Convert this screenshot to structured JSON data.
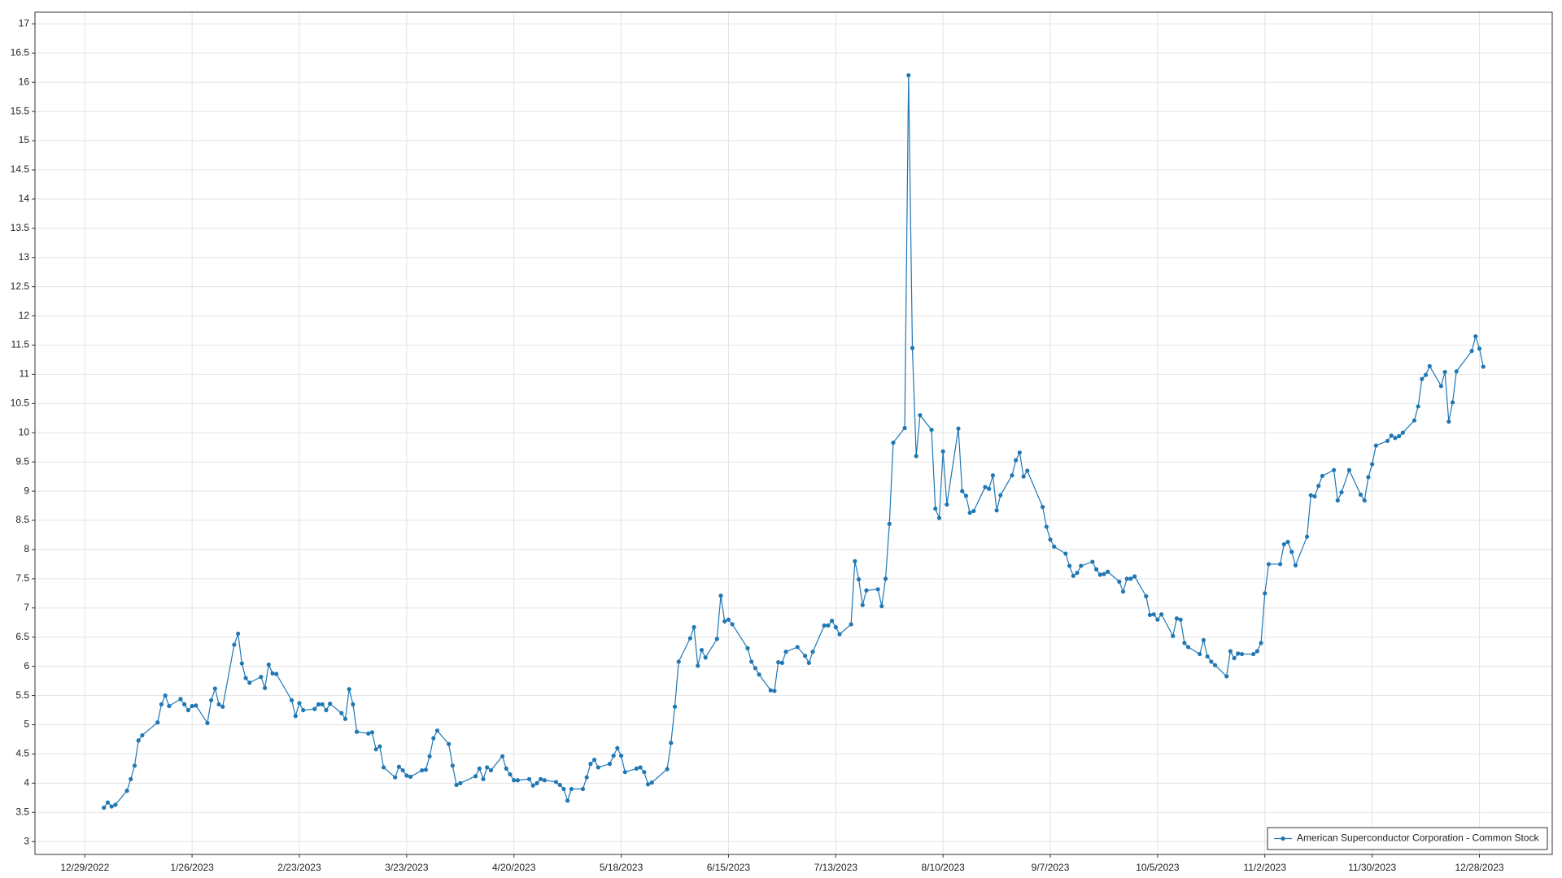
{
  "chart_data": {
    "type": "line",
    "x": [
      "1/3/2023",
      "1/4/2023",
      "1/5/2023",
      "1/6/2023",
      "1/9/2023",
      "1/10/2023",
      "1/11/2023",
      "1/12/2023",
      "1/13/2023",
      "1/17/2023",
      "1/18/2023",
      "1/19/2023",
      "1/20/2023",
      "1/23/2023",
      "1/24/2023",
      "1/25/2023",
      "1/26/2023",
      "1/27/2023",
      "1/30/2023",
      "1/31/2023",
      "2/1/2023",
      "2/2/2023",
      "2/3/2023",
      "2/6/2023",
      "2/7/2023",
      "2/8/2023",
      "2/9/2023",
      "2/10/2023",
      "2/13/2023",
      "2/14/2023",
      "2/15/2023",
      "2/16/2023",
      "2/17/2023",
      "2/21/2023",
      "2/22/2023",
      "2/23/2023",
      "2/24/2023",
      "2/27/2023",
      "2/28/2023",
      "3/1/2023",
      "3/2/2023",
      "3/3/2023",
      "3/6/2023",
      "3/7/2023",
      "3/8/2023",
      "3/9/2023",
      "3/10/2023",
      "3/13/2023",
      "3/14/2023",
      "3/15/2023",
      "3/16/2023",
      "3/17/2023",
      "3/20/2023",
      "3/21/2023",
      "3/22/2023",
      "3/23/2023",
      "3/24/2023",
      "3/27/2023",
      "3/28/2023",
      "3/29/2023",
      "3/30/2023",
      "3/31/2023",
      "4/3/2023",
      "4/4/2023",
      "4/5/2023",
      "4/6/2023",
      "4/10/2023",
      "4/11/2023",
      "4/12/2023",
      "4/13/2023",
      "4/14/2023",
      "4/17/2023",
      "4/18/2023",
      "4/19/2023",
      "4/20/2023",
      "4/21/2023",
      "4/24/2023",
      "4/25/2023",
      "4/26/2023",
      "4/27/2023",
      "4/28/2023",
      "5/1/2023",
      "5/2/2023",
      "5/3/2023",
      "5/4/2023",
      "5/5/2023",
      "5/8/2023",
      "5/9/2023",
      "5/10/2023",
      "5/11/2023",
      "5/12/2023",
      "5/15/2023",
      "5/16/2023",
      "5/17/2023",
      "5/18/2023",
      "5/19/2023",
      "5/22/2023",
      "5/23/2023",
      "5/24/2023",
      "5/25/2023",
      "5/26/2023",
      "5/30/2023",
      "5/31/2023",
      "6/1/2023",
      "6/2/2023",
      "6/5/2023",
      "6/6/2023",
      "6/7/2023",
      "6/8/2023",
      "6/9/2023",
      "6/12/2023",
      "6/13/2023",
      "6/14/2023",
      "6/15/2023",
      "6/16/2023",
      "6/20/2023",
      "6/21/2023",
      "6/22/2023",
      "6/23/2023",
      "6/26/2023",
      "6/27/2023",
      "6/28/2023",
      "6/29/2023",
      "6/30/2023",
      "7/3/2023",
      "7/5/2023",
      "7/6/2023",
      "7/7/2023",
      "7/10/2023",
      "7/11/2023",
      "7/12/2023",
      "7/13/2023",
      "7/14/2023",
      "7/17/2023",
      "7/18/2023",
      "7/19/2023",
      "7/20/2023",
      "7/21/2023",
      "7/24/2023",
      "7/25/2023",
      "7/26/2023",
      "7/27/2023",
      "7/28/2023",
      "7/31/2023",
      "8/1/2023",
      "8/2/2023",
      "8/3/2023",
      "8/4/2023",
      "8/7/2023",
      "8/8/2023",
      "8/9/2023",
      "8/10/2023",
      "8/11/2023",
      "8/14/2023",
      "8/15/2023",
      "8/16/2023",
      "8/17/2023",
      "8/18/2023",
      "8/21/2023",
      "8/22/2023",
      "8/23/2023",
      "8/24/2023",
      "8/25/2023",
      "8/28/2023",
      "8/29/2023",
      "8/30/2023",
      "8/31/2023",
      "9/1/2023",
      "9/5/2023",
      "9/6/2023",
      "9/7/2023",
      "9/8/2023",
      "9/11/2023",
      "9/12/2023",
      "9/13/2023",
      "9/14/2023",
      "9/15/2023",
      "9/18/2023",
      "9/19/2023",
      "9/20/2023",
      "9/21/2023",
      "9/22/2023",
      "9/25/2023",
      "9/26/2023",
      "9/27/2023",
      "9/28/2023",
      "9/29/2023",
      "10/2/2023",
      "10/3/2023",
      "10/4/2023",
      "10/5/2023",
      "10/6/2023",
      "10/9/2023",
      "10/10/2023",
      "10/11/2023",
      "10/12/2023",
      "10/13/2023",
      "10/16/2023",
      "10/17/2023",
      "10/18/2023",
      "10/19/2023",
      "10/20/2023",
      "10/23/2023",
      "10/24/2023",
      "10/25/2023",
      "10/26/2023",
      "10/27/2023",
      "10/30/2023",
      "10/31/2023",
      "11/1/2023",
      "11/2/2023",
      "11/3/2023",
      "11/6/2023",
      "11/7/2023",
      "11/8/2023",
      "11/9/2023",
      "11/10/2023",
      "11/13/2023",
      "11/14/2023",
      "11/15/2023",
      "11/16/2023",
      "11/17/2023",
      "11/20/2023",
      "11/21/2023",
      "11/22/2023",
      "11/24/2023",
      "11/27/2023",
      "11/28/2023",
      "11/29/2023",
      "11/30/2023",
      "12/1/2023",
      "12/4/2023",
      "12/5/2023",
      "12/6/2023",
      "12/7/2023",
      "12/8/2023",
      "12/11/2023",
      "12/12/2023",
      "12/13/2023",
      "12/14/2023",
      "12/15/2023",
      "12/18/2023",
      "12/19/2023",
      "12/20/2023",
      "12/21/2023",
      "12/22/2023",
      "12/26/2023",
      "12/27/2023",
      "12/28/2023",
      "12/29/2023"
    ],
    "series": [
      {
        "name": "American Superconductor Corporation - Common Stock",
        "color": "#1f77b4",
        "values": [
          3.58,
          3.67,
          3.6,
          3.63,
          3.87,
          4.07,
          4.3,
          4.73,
          4.82,
          5.04,
          5.35,
          5.5,
          5.32,
          5.44,
          5.35,
          5.25,
          5.32,
          5.33,
          5.03,
          5.42,
          5.62,
          5.35,
          5.31,
          6.37,
          6.56,
          6.05,
          5.8,
          5.72,
          5.82,
          5.63,
          6.03,
          5.88,
          5.87,
          5.42,
          5.15,
          5.37,
          5.25,
          5.27,
          5.35,
          5.35,
          5.25,
          5.36,
          5.2,
          5.1,
          5.61,
          5.35,
          4.88,
          4.85,
          4.87,
          4.58,
          4.63,
          4.27,
          4.1,
          4.28,
          4.22,
          4.13,
          4.11,
          4.22,
          4.23,
          4.46,
          4.77,
          4.9,
          4.67,
          4.3,
          3.97,
          4.0,
          4.12,
          4.25,
          4.07,
          4.27,
          4.22,
          4.46,
          4.25,
          4.15,
          4.05,
          4.05,
          4.07,
          3.96,
          4.0,
          4.07,
          4.05,
          4.02,
          3.97,
          3.9,
          3.7,
          3.9,
          3.9,
          4.1,
          4.33,
          4.4,
          4.27,
          4.33,
          4.47,
          4.6,
          4.47,
          4.19,
          4.25,
          4.27,
          4.19,
          3.98,
          4.01,
          4.24,
          4.69,
          5.31,
          6.08,
          6.48,
          6.67,
          6.01,
          6.28,
          6.15,
          6.47,
          7.21,
          6.77,
          6.8,
          6.72,
          6.31,
          6.08,
          5.97,
          5.86,
          5.59,
          5.58,
          6.07,
          6.06,
          6.25,
          6.33,
          6.18,
          6.06,
          6.25,
          6.7,
          6.7,
          6.78,
          6.67,
          6.55,
          6.72,
          7.8,
          7.49,
          7.05,
          7.3,
          7.32,
          7.03,
          7.5,
          8.44,
          9.83,
          10.08,
          16.12,
          11.45,
          9.6,
          10.3,
          10.05,
          8.7,
          8.54,
          9.68,
          8.77,
          10.07,
          9.0,
          8.92,
          8.63,
          8.66,
          9.07,
          9.04,
          9.27,
          8.67,
          8.93,
          9.27,
          9.53,
          9.66,
          9.25,
          9.35,
          8.73,
          8.39,
          8.17,
          8.05,
          7.93,
          7.72,
          7.55,
          7.6,
          7.72,
          7.79,
          7.66,
          7.57,
          7.58,
          7.62,
          7.45,
          7.28,
          7.5,
          7.5,
          7.54,
          7.2,
          6.88,
          6.89,
          6.8,
          6.89,
          6.52,
          6.82,
          6.8,
          6.4,
          6.33,
          6.21,
          6.45,
          6.17,
          6.08,
          6.02,
          5.83,
          6.26,
          6.14,
          6.22,
          6.21,
          6.21,
          6.26,
          6.4,
          7.25,
          7.75,
          7.75,
          8.09,
          8.13,
          7.96,
          7.73,
          8.22,
          8.93,
          8.91,
          9.09,
          9.26,
          9.36,
          8.84,
          8.98,
          9.36,
          8.94,
          8.84,
          9.24,
          9.46,
          9.78,
          9.86,
          9.95,
          9.91,
          9.94,
          10.0,
          10.21,
          10.45,
          10.92,
          10.99,
          11.14,
          10.8,
          11.04,
          10.19,
          10.52,
          11.05,
          11.4,
          11.65,
          11.44,
          11.13
        ]
      }
    ],
    "xlim": [
      "12/16/2022",
      "1/16/2024"
    ],
    "xticks": [
      "12/29/2022",
      "1/26/2023",
      "2/23/2023",
      "3/23/2023",
      "4/20/2023",
      "5/18/2023",
      "6/15/2023",
      "7/13/2023",
      "8/10/2023",
      "9/7/2023",
      "10/5/2023",
      "11/2/2023",
      "11/30/2023",
      "12/28/2023"
    ],
    "ylim": [
      2.78,
      17.2
    ],
    "yticks": [
      3,
      3.5,
      4,
      4.5,
      5,
      5.5,
      6,
      6.5,
      7,
      7.5,
      8,
      8.5,
      9,
      9.5,
      10,
      10.5,
      11,
      11.5,
      12,
      12.5,
      13,
      13.5,
      14,
      14.5,
      15,
      15.5,
      16,
      16.5,
      17
    ],
    "grid": true,
    "legend": "lower right"
  }
}
